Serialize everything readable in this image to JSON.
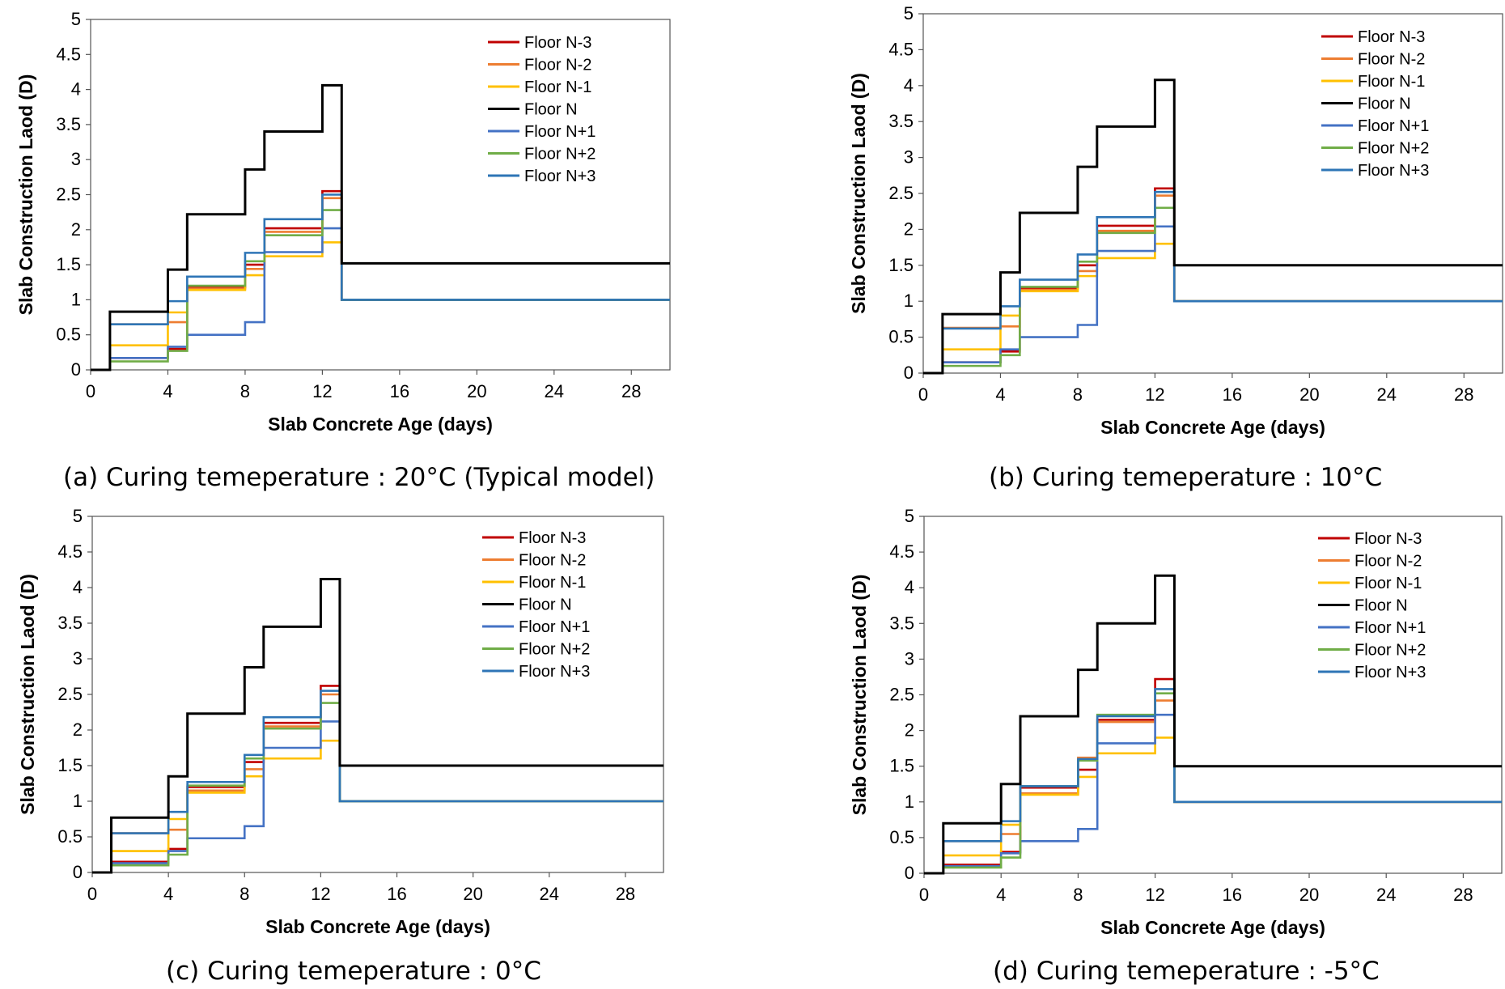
{
  "legend_labels": [
    "Floor N-3",
    "Floor N-2",
    "Floor N-1",
    "Floor N",
    "Floor N+1",
    "Floor N+2",
    "Floor N+3"
  ],
  "series_colors": [
    "#C00000",
    "#ED7D31",
    "#FFC000",
    "#000000",
    "#4472C4",
    "#70AD47",
    "#2E75B6"
  ],
  "chart_data": [
    {
      "type": "line",
      "caption": "(a) Curing temeperature : 20°C (Typical model)",
      "xlabel": "Slab Concrete Age (days)",
      "ylabel": "Slab Construction Laod (D)",
      "xlim": [
        0,
        30
      ],
      "ylim": [
        0,
        5
      ],
      "x_ticks": [
        "0",
        "4",
        "8",
        "12",
        "16",
        "20",
        "24",
        "28"
      ],
      "y_ticks": [
        "0",
        "0.5",
        "1",
        "1.5",
        "2",
        "2.5",
        "3",
        "3.5",
        "4",
        "4.5",
        "5"
      ],
      "series": [
        {
          "name": "Floor N-3",
          "steps": [
            [
              1,
              0.17
            ],
            [
              4,
              0.3
            ],
            [
              5,
              1.18
            ],
            [
              8,
              1.5
            ],
            [
              9,
              2.02
            ],
            [
              12,
              2.55
            ],
            [
              13,
              1.0
            ]
          ]
        },
        {
          "name": "Floor N-2",
          "steps": [
            [
              1,
              0.65
            ],
            [
              4,
              0.68
            ],
            [
              5,
              1.16
            ],
            [
              8,
              1.44
            ],
            [
              9,
              1.97
            ],
            [
              12,
              2.45
            ],
            [
              13,
              1.0
            ]
          ]
        },
        {
          "name": "Floor N-1",
          "steps": [
            [
              1,
              0.35
            ],
            [
              4,
              0.82
            ],
            [
              5,
              1.14
            ],
            [
              8,
              1.35
            ],
            [
              9,
              1.62
            ],
            [
              12,
              1.82
            ],
            [
              13,
              1.0
            ]
          ]
        },
        {
          "name": "Floor N",
          "steps": [
            [
              1,
              0.83
            ],
            [
              4,
              1.43
            ],
            [
              5,
              2.22
            ],
            [
              8,
              2.86
            ],
            [
              9,
              3.4
            ],
            [
              12,
              4.06
            ],
            [
              13,
              1.52
            ]
          ]
        },
        {
          "name": "Floor N+1",
          "steps": [
            [
              1,
              0.17
            ],
            [
              4,
              0.33
            ],
            [
              5,
              0.5
            ],
            [
              8,
              0.68
            ],
            [
              9,
              1.68
            ],
            [
              12,
              2.02
            ],
            [
              13,
              1.0
            ]
          ]
        },
        {
          "name": "Floor N+2",
          "steps": [
            [
              1,
              0.12
            ],
            [
              4,
              0.27
            ],
            [
              5,
              1.2
            ],
            [
              8,
              1.55
            ],
            [
              9,
              1.92
            ],
            [
              12,
              2.28
            ],
            [
              13,
              1.0
            ]
          ]
        },
        {
          "name": "Floor N+3",
          "steps": [
            [
              1,
              0.65
            ],
            [
              4,
              0.98
            ],
            [
              5,
              1.33
            ],
            [
              8,
              1.67
            ],
            [
              9,
              2.15
            ],
            [
              12,
              2.5
            ],
            [
              13,
              1.0
            ]
          ]
        }
      ]
    },
    {
      "type": "line",
      "caption": "(b) Curing temeperature : 10°C",
      "xlabel": "Slab Concrete Age (days)",
      "ylabel": "Slab Construction Laod (D)",
      "xlim": [
        0,
        30
      ],
      "ylim": [
        0,
        5
      ],
      "x_ticks": [
        "0",
        "4",
        "8",
        "12",
        "16",
        "20",
        "24",
        "28"
      ],
      "y_ticks": [
        "0",
        "0.5",
        "1",
        "1.5",
        "2",
        "2.5",
        "3",
        "3.5",
        "4",
        "4.5",
        "5"
      ],
      "series": [
        {
          "name": "Floor N-3",
          "steps": [
            [
              1,
              0.15
            ],
            [
              4,
              0.3
            ],
            [
              5,
              1.18
            ],
            [
              8,
              1.5
            ],
            [
              9,
              2.05
            ],
            [
              12,
              2.57
            ],
            [
              13,
              1.0
            ]
          ]
        },
        {
          "name": "Floor N-2",
          "steps": [
            [
              1,
              0.63
            ],
            [
              4,
              0.65
            ],
            [
              5,
              1.16
            ],
            [
              8,
              1.42
            ],
            [
              9,
              1.98
            ],
            [
              12,
              2.47
            ],
            [
              13,
              1.0
            ]
          ]
        },
        {
          "name": "Floor N-1",
          "steps": [
            [
              1,
              0.33
            ],
            [
              4,
              0.8
            ],
            [
              5,
              1.14
            ],
            [
              8,
              1.35
            ],
            [
              9,
              1.6
            ],
            [
              12,
              1.8
            ],
            [
              13,
              1.0
            ]
          ]
        },
        {
          "name": "Floor N",
          "steps": [
            [
              1,
              0.82
            ],
            [
              4,
              1.4
            ],
            [
              5,
              2.23
            ],
            [
              8,
              2.87
            ],
            [
              9,
              3.43
            ],
            [
              12,
              4.08
            ],
            [
              13,
              1.5
            ]
          ]
        },
        {
          "name": "Floor N+1",
          "steps": [
            [
              1,
              0.15
            ],
            [
              4,
              0.33
            ],
            [
              5,
              0.5
            ],
            [
              8,
              0.67
            ],
            [
              9,
              1.7
            ],
            [
              12,
              2.04
            ],
            [
              13,
              1.0
            ]
          ]
        },
        {
          "name": "Floor N+2",
          "steps": [
            [
              1,
              0.1
            ],
            [
              4,
              0.25
            ],
            [
              5,
              1.2
            ],
            [
              8,
              1.55
            ],
            [
              9,
              1.95
            ],
            [
              12,
              2.3
            ],
            [
              13,
              1.0
            ]
          ]
        },
        {
          "name": "Floor N+3",
          "steps": [
            [
              1,
              0.62
            ],
            [
              4,
              0.93
            ],
            [
              5,
              1.3
            ],
            [
              8,
              1.65
            ],
            [
              9,
              2.17
            ],
            [
              12,
              2.52
            ],
            [
              13,
              1.0
            ]
          ]
        }
      ]
    },
    {
      "type": "line",
      "caption": "(c) Curing temeperature : 0°C",
      "xlabel": "Slab Concrete Age (days)",
      "ylabel": "Slab Construction Laod (D)",
      "xlim": [
        0,
        30
      ],
      "ylim": [
        0,
        5
      ],
      "x_ticks": [
        "0",
        "4",
        "8",
        "12",
        "16",
        "20",
        "24",
        "28"
      ],
      "y_ticks": [
        "0",
        "0.5",
        "1",
        "1.5",
        "2",
        "2.5",
        "3",
        "3.5",
        "4",
        "4.5",
        "5"
      ],
      "series": [
        {
          "name": "Floor N-3",
          "steps": [
            [
              1,
              0.15
            ],
            [
              4,
              0.33
            ],
            [
              5,
              1.2
            ],
            [
              8,
              1.55
            ],
            [
              9,
              2.1
            ],
            [
              12,
              2.62
            ],
            [
              13,
              1.0
            ]
          ]
        },
        {
          "name": "Floor N-2",
          "steps": [
            [
              1,
              0.55
            ],
            [
              4,
              0.6
            ],
            [
              5,
              1.15
            ],
            [
              8,
              1.45
            ],
            [
              9,
              2.05
            ],
            [
              12,
              2.5
            ],
            [
              13,
              1.0
            ]
          ]
        },
        {
          "name": "Floor N-1",
          "steps": [
            [
              1,
              0.3
            ],
            [
              4,
              0.75
            ],
            [
              5,
              1.12
            ],
            [
              8,
              1.35
            ],
            [
              9,
              1.6
            ],
            [
              12,
              1.85
            ],
            [
              13,
              1.0
            ]
          ]
        },
        {
          "name": "Floor N",
          "steps": [
            [
              1,
              0.77
            ],
            [
              4,
              1.35
            ],
            [
              5,
              2.23
            ],
            [
              8,
              2.88
            ],
            [
              9,
              3.45
            ],
            [
              12,
              4.12
            ],
            [
              13,
              1.5
            ]
          ]
        },
        {
          "name": "Floor N+1",
          "steps": [
            [
              1,
              0.13
            ],
            [
              4,
              0.3
            ],
            [
              5,
              0.48
            ],
            [
              8,
              0.65
            ],
            [
              9,
              1.75
            ],
            [
              12,
              2.12
            ],
            [
              13,
              1.0
            ]
          ]
        },
        {
          "name": "Floor N+2",
          "steps": [
            [
              1,
              0.1
            ],
            [
              4,
              0.25
            ],
            [
              5,
              1.22
            ],
            [
              8,
              1.6
            ],
            [
              9,
              2.02
            ],
            [
              12,
              2.38
            ],
            [
              13,
              1.0
            ]
          ]
        },
        {
          "name": "Floor N+3",
          "steps": [
            [
              1,
              0.55
            ],
            [
              4,
              0.85
            ],
            [
              5,
              1.27
            ],
            [
              8,
              1.65
            ],
            [
              9,
              2.18
            ],
            [
              12,
              2.55
            ],
            [
              13,
              1.0
            ]
          ]
        }
      ]
    },
    {
      "type": "line",
      "caption": "(d) Curing temeperature : -5°C",
      "xlabel": "Slab Concrete Age (days)",
      "ylabel": "Slab Construction Laod (D)",
      "xlim": [
        0,
        30
      ],
      "ylim": [
        0,
        5
      ],
      "x_ticks": [
        "0",
        "4",
        "8",
        "12",
        "16",
        "20",
        "24",
        "28"
      ],
      "y_ticks": [
        "0",
        "0.5",
        "1",
        "1.5",
        "2",
        "2.5",
        "3",
        "3.5",
        "4",
        "4.5",
        "5"
      ],
      "series": [
        {
          "name": "Floor N-3",
          "steps": [
            [
              1,
              0.12
            ],
            [
              4,
              0.3
            ],
            [
              5,
              1.2
            ],
            [
              8,
              1.45
            ],
            [
              9,
              2.15
            ],
            [
              12,
              2.72
            ],
            [
              13,
              1.0
            ]
          ]
        },
        {
          "name": "Floor N-2",
          "steps": [
            [
              1,
              0.45
            ],
            [
              4,
              0.55
            ],
            [
              5,
              1.12
            ],
            [
              8,
              1.62
            ],
            [
              9,
              2.12
            ],
            [
              12,
              2.42
            ],
            [
              13,
              1.0
            ]
          ]
        },
        {
          "name": "Floor N-1",
          "steps": [
            [
              1,
              0.25
            ],
            [
              4,
              0.68
            ],
            [
              5,
              1.1
            ],
            [
              8,
              1.35
            ],
            [
              9,
              1.68
            ],
            [
              12,
              1.9
            ],
            [
              13,
              1.0
            ]
          ]
        },
        {
          "name": "Floor N",
          "steps": [
            [
              1,
              0.7
            ],
            [
              4,
              1.25
            ],
            [
              5,
              2.2
            ],
            [
              8,
              2.85
            ],
            [
              9,
              3.5
            ],
            [
              12,
              4.17
            ],
            [
              13,
              1.5
            ]
          ]
        },
        {
          "name": "Floor N+1",
          "steps": [
            [
              1,
              0.1
            ],
            [
              4,
              0.28
            ],
            [
              5,
              0.45
            ],
            [
              8,
              0.62
            ],
            [
              9,
              1.82
            ],
            [
              12,
              2.22
            ],
            [
              13,
              1.0
            ]
          ]
        },
        {
          "name": "Floor N+2",
          "steps": [
            [
              1,
              0.08
            ],
            [
              4,
              0.22
            ],
            [
              5,
              1.22
            ],
            [
              8,
              1.58
            ],
            [
              9,
              2.22
            ],
            [
              12,
              2.52
            ],
            [
              13,
              1.0
            ]
          ]
        },
        {
          "name": "Floor N+3",
          "steps": [
            [
              1,
              0.45
            ],
            [
              4,
              0.73
            ],
            [
              5,
              1.22
            ],
            [
              8,
              1.6
            ],
            [
              9,
              2.2
            ],
            [
              12,
              2.58
            ],
            [
              13,
              1.0
            ]
          ]
        }
      ]
    }
  ]
}
